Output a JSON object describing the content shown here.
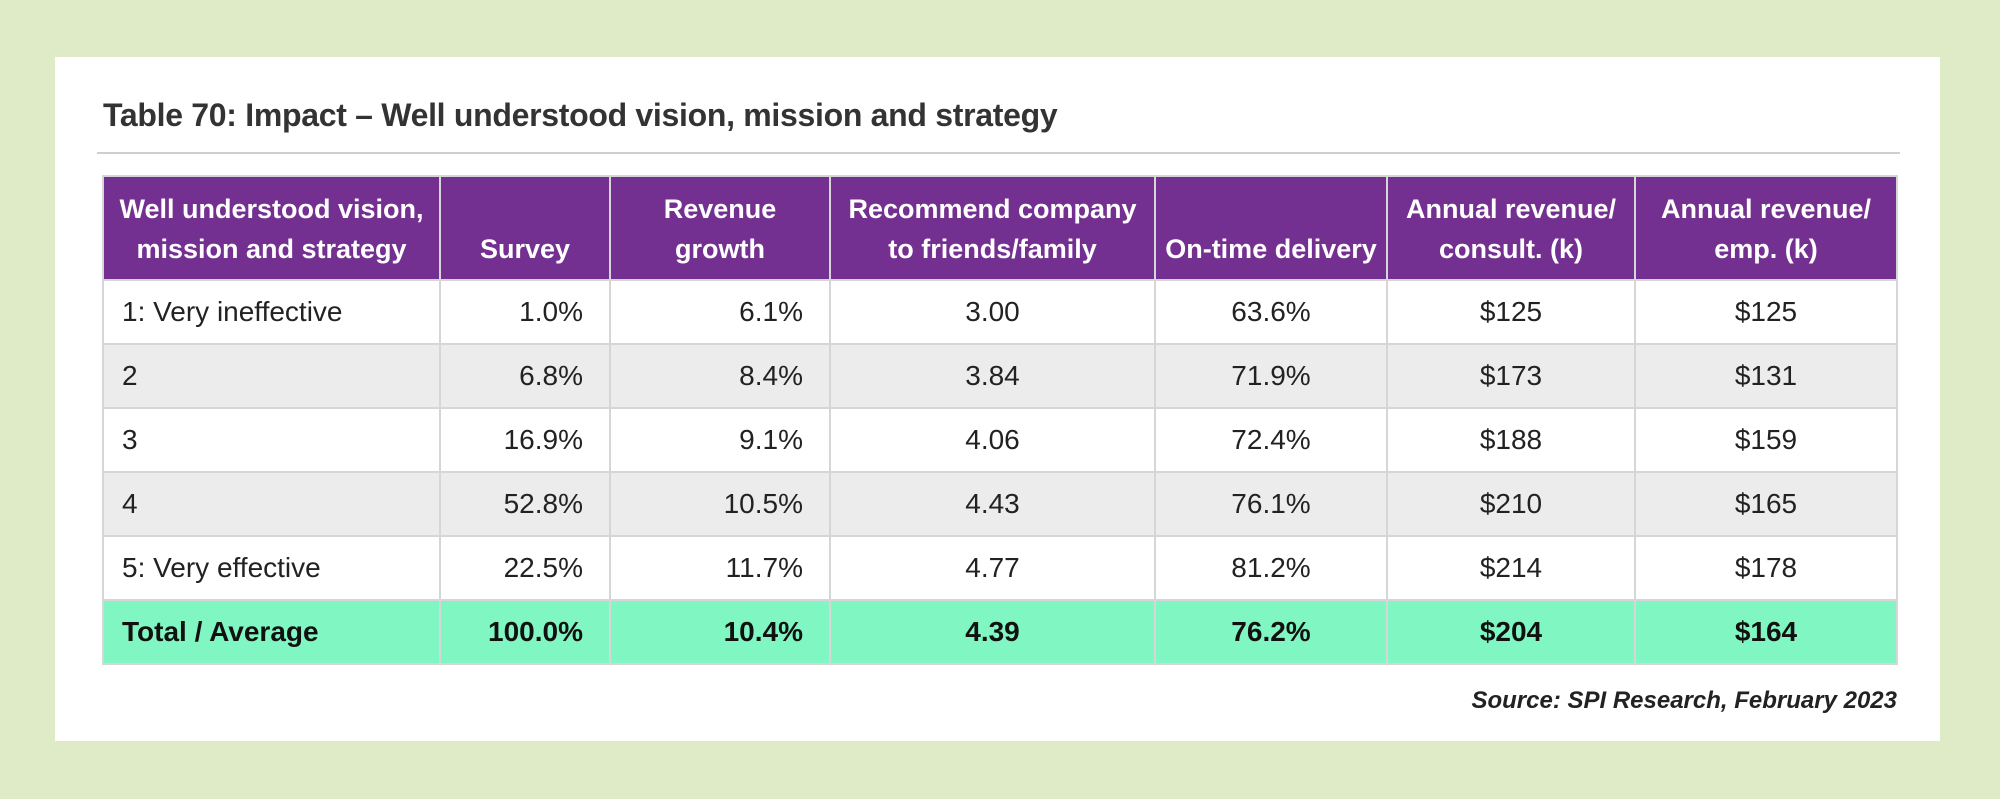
{
  "title": "Table 70:  Impact – Well understood vision, mission and strategy",
  "columns": [
    "Well understood vision, mission and strategy",
    "Survey",
    "Revenue growth",
    "Recommend company to friends/family",
    "On-time delivery",
    "Annual revenue/ consult. (k)",
    "Annual revenue/ emp. (k)"
  ],
  "rows": [
    [
      "1: Very ineffective",
      "1.0%",
      "6.1%",
      "3.00",
      "63.6%",
      "$125",
      "$125"
    ],
    [
      "2",
      "6.8%",
      "8.4%",
      "3.84",
      "71.9%",
      "$173",
      "$131"
    ],
    [
      "3",
      "16.9%",
      "9.1%",
      "4.06",
      "72.4%",
      "$188",
      "$159"
    ],
    [
      "4",
      "52.8%",
      "10.5%",
      "4.43",
      "76.1%",
      "$210",
      "$165"
    ],
    [
      "5: Very effective",
      "22.5%",
      "11.7%",
      "4.77",
      "81.2%",
      "$214",
      "$178"
    ]
  ],
  "total": [
    "Total / Average",
    "100.0%",
    "10.4%",
    "4.39",
    "76.2%",
    "$204",
    "$164"
  ],
  "source": "Source: SPI Research, February 2023",
  "colors": {
    "background": "#deebc6",
    "header": "#743091",
    "total_row": "#80f7c2",
    "stripe": "#ececec"
  }
}
